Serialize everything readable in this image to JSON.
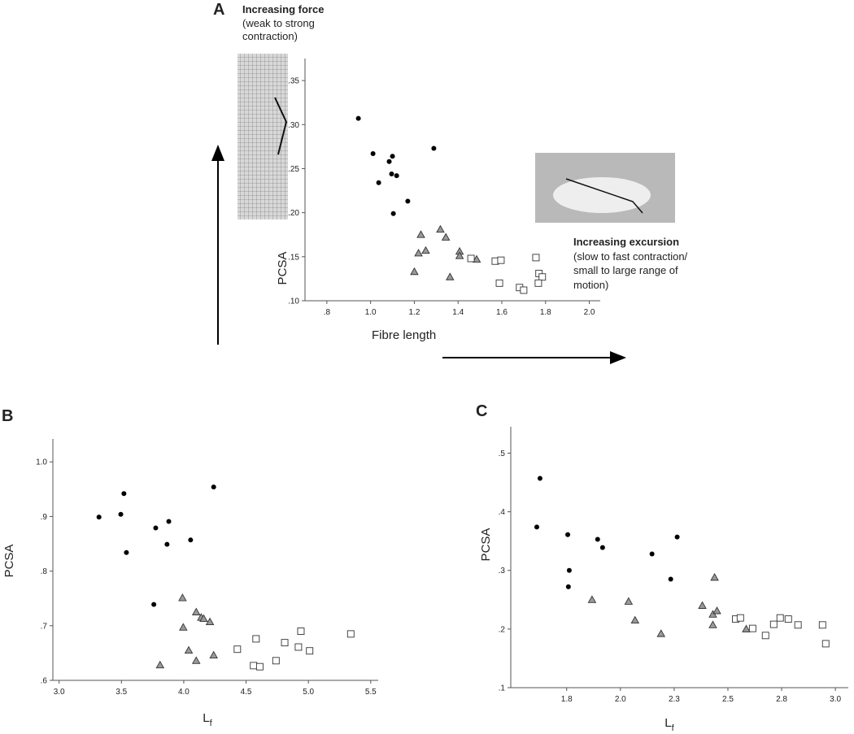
{
  "chart_data": [
    {
      "type": "scatter",
      "panel": "A",
      "y_label": "PCSA",
      "x_label": "Fibre length",
      "annotations": [
        {
          "text": "Increasing force",
          "bold": true
        },
        {
          "text": "(weak to strong",
          "bold": false
        },
        {
          "text": "contraction)",
          "bold": false
        },
        {
          "text": "Increasing excursion",
          "bold": true
        },
        {
          "text": "(slow to fast contraction/",
          "bold": false
        },
        {
          "text": "small to large range of",
          "bold": false
        },
        {
          "text": "motion)",
          "bold": false
        }
      ],
      "xlim": [
        0.7,
        2.05
      ],
      "ylim": [
        0.1,
        0.375
      ],
      "xticks": [
        {
          "value": 0.8,
          "label": ".8"
        },
        {
          "value": 1.0,
          "label": "1.0"
        },
        1.2,
        1.4,
        1.6,
        1.8,
        {
          "value": 2.0,
          "label": "2.0"
        }
      ],
      "yticks": [
        {
          "value": 0.1,
          "label": ".10"
        },
        {
          "value": 0.15,
          "label": ".15"
        },
        {
          "value": 0.2,
          "label": ".20"
        },
        {
          "value": 0.25,
          "label": ".25"
        },
        {
          "value": 0.3,
          "label": ".30"
        },
        {
          "value": 0.35,
          "label": ".35"
        }
      ],
      "series": [
        {
          "marker": "circle",
          "color": "#000000",
          "x": [
            0.944,
            1.011,
            1.1,
            1.085,
            1.037,
            1.096,
            1.119,
            1.289,
            1.17,
            1.104
          ],
          "values": [
            0.307,
            0.267,
            0.264,
            0.258,
            0.234,
            0.244,
            0.242,
            0.273,
            0.213,
            0.199
          ]
        },
        {
          "marker": "triangle",
          "color": "#999999",
          "x": [
            1.319,
            1.344,
            1.23,
            1.252,
            1.219,
            1.2,
            1.363,
            1.407,
            1.407,
            1.485
          ],
          "values": [
            0.181,
            0.172,
            0.175,
            0.157,
            0.154,
            0.133,
            0.127,
            0.156,
            0.151,
            0.147
          ]
        },
        {
          "marker": "square",
          "color": "#ffffff",
          "x": [
            1.459,
            1.57,
            1.596,
            1.589,
            1.681,
            1.7,
            1.756,
            1.77,
            1.785,
            1.767
          ],
          "values": [
            0.148,
            0.145,
            0.146,
            0.12,
            0.115,
            0.112,
            0.149,
            0.131,
            0.127,
            0.12
          ]
        }
      ]
    },
    {
      "type": "scatter",
      "panel": "B",
      "y_label": "PCSA",
      "x_label": "L",
      "x_label_subscript": "f",
      "xlim": [
        2.95,
        5.56
      ],
      "ylim": [
        0.6,
        1.042
      ],
      "xticks": [
        {
          "value": 3.0,
          "label": "3.0"
        },
        3.5,
        {
          "value": 4.0,
          "label": "4.0"
        },
        4.5,
        {
          "value": 5.0,
          "label": "5.0"
        },
        5.5
      ],
      "yticks": [
        {
          "value": 0.6,
          "label": ".6"
        },
        {
          "value": 0.7,
          "label": ".7"
        },
        {
          "value": 0.8,
          "label": ".8"
        },
        {
          "value": 0.9,
          "label": ".9"
        },
        {
          "value": 1.0,
          "label": "1.0"
        }
      ],
      "series": [
        {
          "marker": "circle",
          "color": "#000000",
          "x": [
            3.32,
            3.495,
            3.52,
            3.54,
            3.775,
            3.88,
            3.866,
            3.76,
            4.055,
            4.24
          ],
          "values": [
            0.899,
            0.904,
            0.942,
            0.834,
            0.879,
            0.891,
            0.849,
            0.739,
            0.857,
            0.954
          ]
        },
        {
          "marker": "triangle",
          "color": "#999999",
          "x": [
            3.99,
            3.996,
            4.1,
            4.14,
            4.16,
            4.21,
            4.04,
            4.1,
            4.24,
            3.81
          ],
          "values": [
            0.751,
            0.697,
            0.725,
            0.715,
            0.713,
            0.707,
            0.655,
            0.636,
            0.646,
            0.628
          ]
        },
        {
          "marker": "square",
          "color": "#ffffff",
          "x": [
            4.43,
            4.58,
            4.81,
            4.94,
            4.92,
            5.01,
            5.34,
            4.74,
            4.56,
            4.61
          ],
          "values": [
            0.657,
            0.676,
            0.669,
            0.69,
            0.661,
            0.654,
            0.685,
            0.636,
            0.627,
            0.625
          ]
        }
      ]
    },
    {
      "type": "scatter",
      "panel": "C",
      "y_label": "PCSA",
      "x_label": "L",
      "x_label_subscript": "f",
      "xlim": [
        1.49,
        3.06
      ],
      "ylim": [
        0.1,
        0.545
      ],
      "xticks": [
        {
          "value": 1.75,
          "label": "1.8"
        },
        {
          "value": 2.0,
          "label": "2.0"
        },
        {
          "value": 2.25,
          "label": "2.3"
        },
        2.5,
        {
          "value": 2.75,
          "label": "2.8"
        },
        {
          "value": 3.0,
          "label": "3.0"
        }
      ],
      "yticks": [
        {
          "value": 0.1,
          "label": ".1"
        },
        {
          "value": 0.2,
          "label": ".2"
        },
        {
          "value": 0.3,
          "label": ".3"
        },
        {
          "value": 0.4,
          "label": ".4"
        },
        {
          "value": 0.5,
          "label": ".5"
        }
      ],
      "series": [
        {
          "marker": "circle",
          "color": "#000000",
          "x": [
            1.611,
            1.626,
            1.755,
            1.762,
            1.758,
            1.894,
            1.917,
            2.147,
            2.264,
            2.234
          ],
          "values": [
            0.374,
            0.457,
            0.361,
            0.3,
            0.272,
            0.353,
            0.339,
            0.328,
            0.357,
            0.285
          ]
        },
        {
          "marker": "triangle",
          "color": "#999999",
          "x": [
            1.868,
            2.038,
            2.068,
            2.189,
            2.381,
            2.438,
            2.43,
            2.449,
            2.43,
            2.585
          ],
          "values": [
            0.25,
            0.247,
            0.215,
            0.192,
            0.24,
            0.288,
            0.225,
            0.231,
            0.207,
            0.2
          ]
        },
        {
          "marker": "square",
          "color": "#ffffff",
          "x": [
            2.536,
            2.558,
            2.615,
            2.675,
            2.713,
            2.743,
            2.781,
            2.826,
            2.94,
            2.955
          ],
          "values": [
            0.217,
            0.219,
            0.201,
            0.189,
            0.208,
            0.219,
            0.217,
            0.207,
            0.207,
            0.175
          ]
        }
      ]
    }
  ]
}
